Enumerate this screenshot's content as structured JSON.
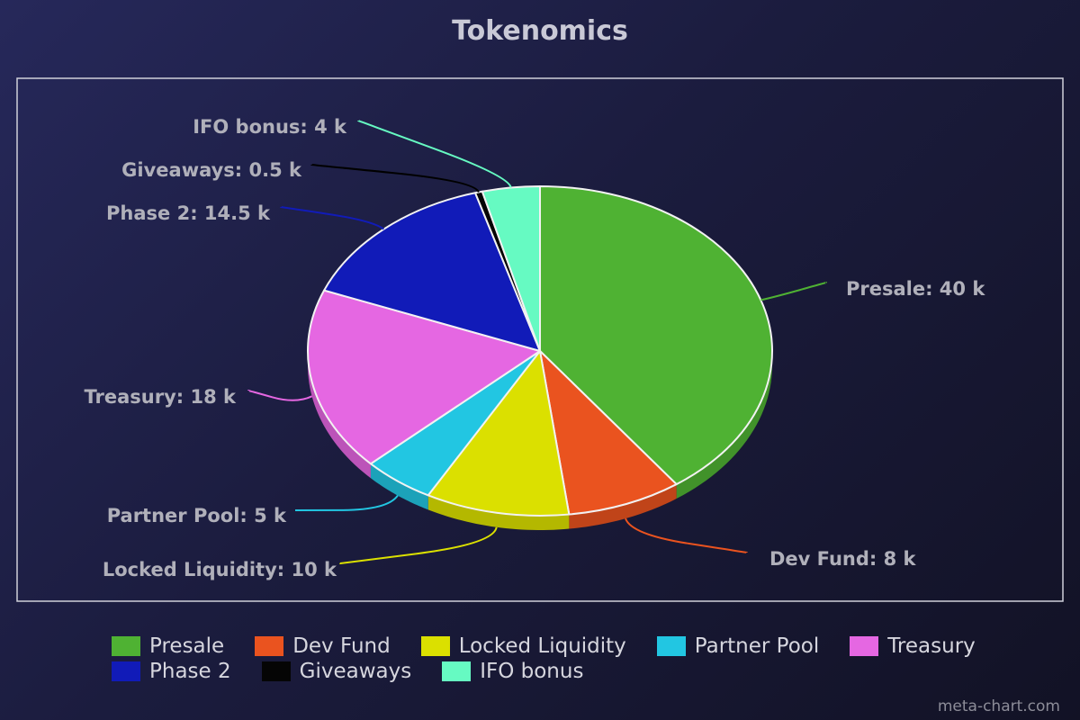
{
  "chart_data": {
    "type": "pie",
    "title": "Tokenomics",
    "categories": [
      "Presale",
      "Dev Fund",
      "Locked Liquidity",
      "Partner Pool",
      "Treasury",
      "Phase 2",
      "Giveaways",
      "IFO bonus"
    ],
    "values": [
      40,
      8,
      10,
      5,
      18,
      14.5,
      0.5,
      4
    ],
    "labels": [
      "Presale: 40 k",
      "Dev Fund: 8 k",
      "Locked Liquidity: 10 k",
      "Partner Pool: 5 k",
      "Treasury: 18 k",
      "Phase 2: 14.5 k",
      "Giveaways: 0.5 k",
      "IFO bonus: 4 k"
    ],
    "colors": [
      "#4fb233",
      "#ea531f",
      "#dbe000",
      "#22c6e2",
      "#e567e2",
      "#111bb8",
      "#050505",
      "#66fac2"
    ],
    "legend": {
      "position": "bottom"
    },
    "watermark": "meta-chart.com"
  }
}
